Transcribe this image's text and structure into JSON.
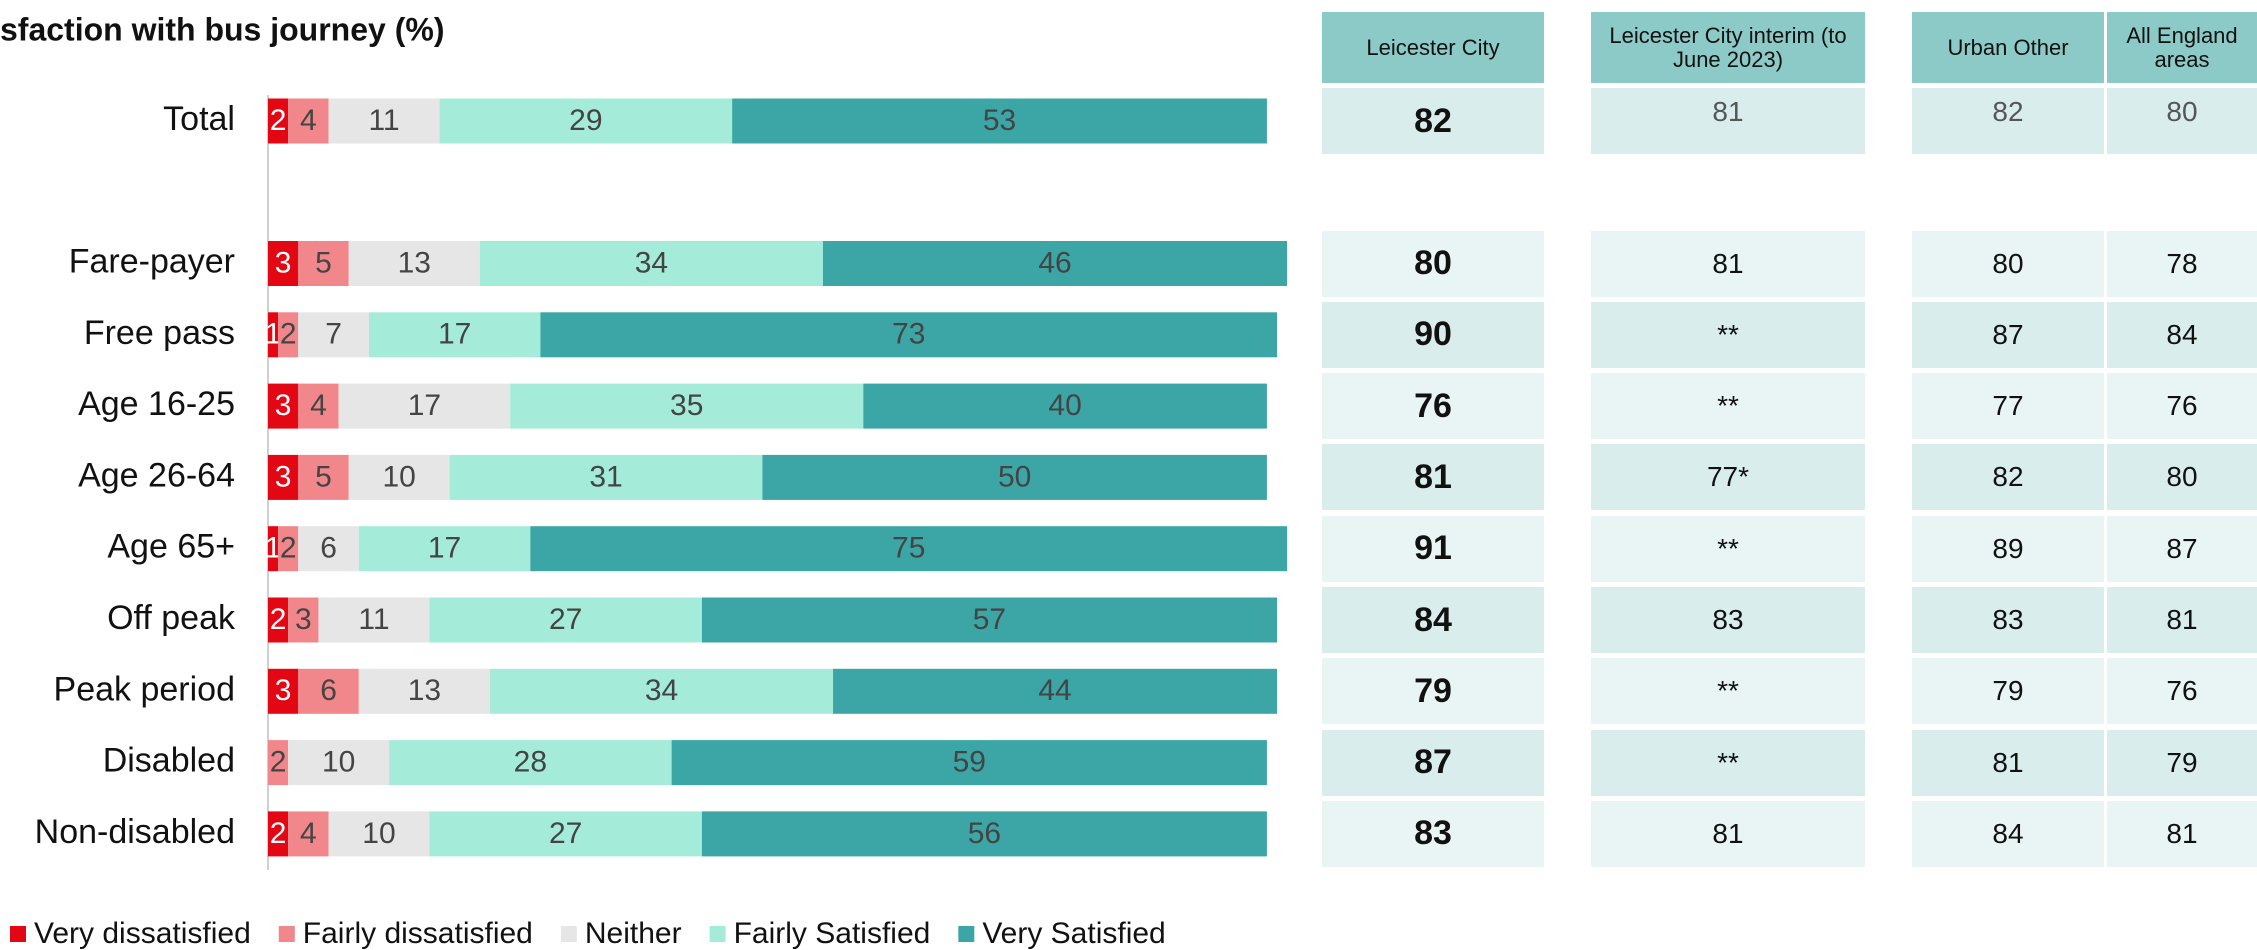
{
  "chart_data": {
    "type": "stacked-bar-horizontal",
    "title": "sfaction with bus journey (%)",
    "categories": [
      "Total",
      "Fare-payer",
      "Free pass",
      "Age 16-25",
      "Age 26-64",
      "Age 65+",
      "Off peak",
      "Peak period",
      "Disabled",
      "Non-disabled"
    ],
    "series": [
      {
        "name": "Very dissatisfied",
        "color": "#e30613",
        "values": [
          2,
          3,
          1,
          3,
          3,
          1,
          2,
          3,
          null,
          2
        ]
      },
      {
        "name": "Fairly dissatisfied",
        "color": "#f2878b",
        "values": [
          4,
          5,
          2,
          4,
          5,
          2,
          3,
          6,
          2,
          4
        ]
      },
      {
        "name": "Neither",
        "color": "#e6e6e6",
        "values": [
          11,
          13,
          7,
          17,
          10,
          6,
          11,
          13,
          10,
          10
        ]
      },
      {
        "name": "Fairly Satisfied",
        "color": "#a4ecd9",
        "values": [
          29,
          34,
          17,
          35,
          31,
          17,
          27,
          34,
          28,
          27
        ]
      },
      {
        "name": "Very Satisfied",
        "color": "#3ba6a5",
        "values": [
          53,
          46,
          73,
          40,
          50,
          75,
          57,
          44,
          59,
          56
        ]
      }
    ],
    "xlim": [
      0,
      100
    ]
  },
  "table": {
    "columns": [
      "Leicester City",
      "Leicester City interim (to June 2023)",
      "Urban Other",
      "All England areas"
    ],
    "rows": [
      [
        82,
        81,
        82,
        80
      ],
      [
        80,
        81,
        80,
        78
      ],
      [
        90,
        "**",
        87,
        84
      ],
      [
        76,
        "**",
        77,
        76
      ],
      [
        81,
        "77*",
        82,
        80
      ],
      [
        91,
        "**",
        89,
        87
      ],
      [
        84,
        83,
        83,
        81
      ],
      [
        79,
        "**",
        79,
        76
      ],
      [
        87,
        "**",
        81,
        79
      ],
      [
        83,
        81,
        84,
        81
      ]
    ]
  }
}
